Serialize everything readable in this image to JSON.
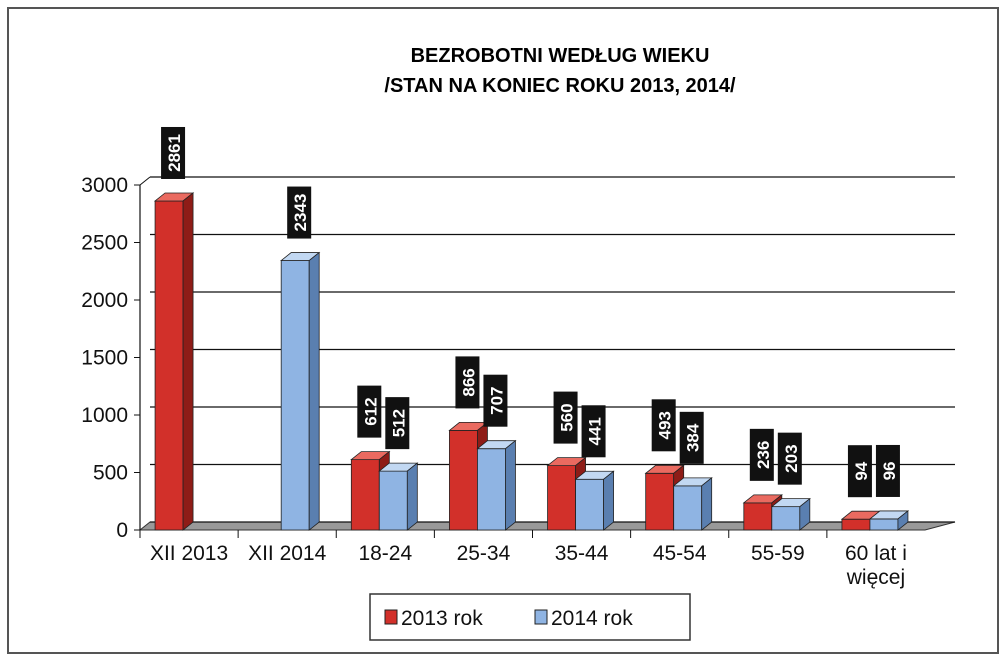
{
  "chart_data": {
    "type": "bar3d",
    "title": [
      "BEZROBOTNI WEDŁUG WIEKU",
      "/STAN NA KONIEC ROKU 2013, 2014/"
    ],
    "categories": [
      "XII 2013",
      "XII 2014",
      "18-24",
      "25-34",
      "35-44",
      "45-54",
      "55-59",
      "60 lat i więcej"
    ],
    "series": [
      {
        "name": "2013 rok",
        "color": "#d2302a",
        "values": [
          2861,
          null,
          612,
          866,
          560,
          493,
          236,
          94
        ]
      },
      {
        "name": "2014 rok",
        "color": "#8fb4e3",
        "values": [
          null,
          2343,
          512,
          707,
          441,
          384,
          203,
          96
        ]
      }
    ],
    "ylim": [
      0,
      3000
    ],
    "yticks": [
      0,
      500,
      1000,
      1500,
      2000,
      2500,
      3000
    ],
    "grid": true,
    "legend": "bottom"
  }
}
